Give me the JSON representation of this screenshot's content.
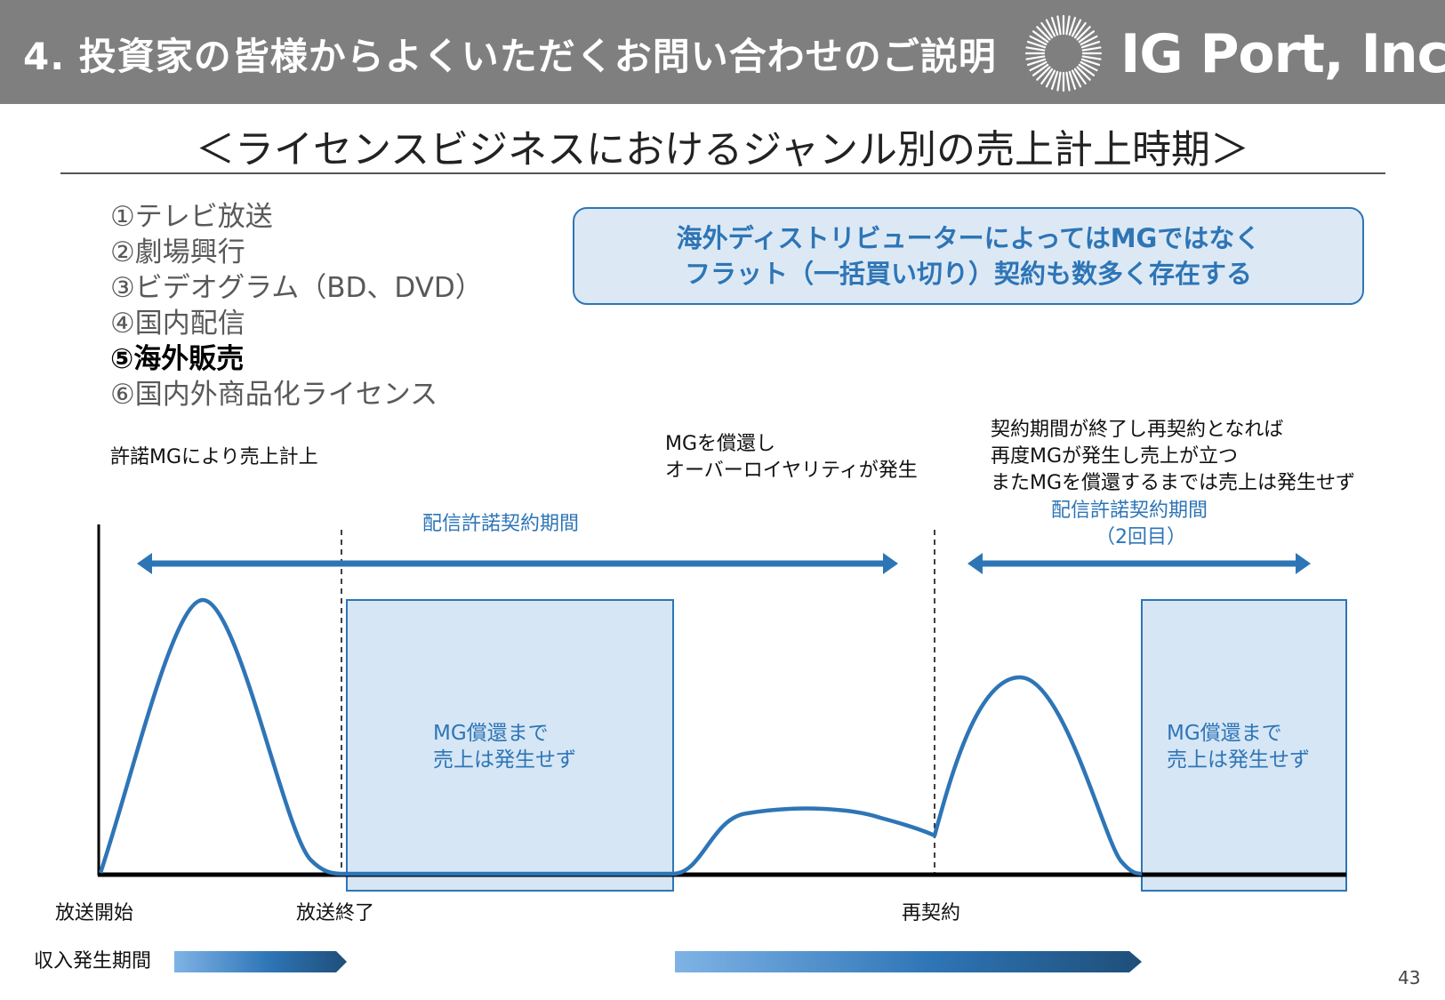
{
  "header": {
    "title": "4. 投資家の皆様からよくいただくお問い合わせのご説明",
    "logo_text": "IG Port, Inc."
  },
  "subtitle": "＜ライセンスビジネスにおけるジャンル別の売上計上時期＞",
  "genres": [
    {
      "label": "①テレビ放送",
      "active": false
    },
    {
      "label": "②劇場興行",
      "active": false
    },
    {
      "label": "③ビデオグラム（BD、DVD）",
      "active": false
    },
    {
      "label": "④国内配信",
      "active": false
    },
    {
      "label": "⑤海外販売",
      "active": true
    },
    {
      "label": "⑥国内外商品化ライセンス",
      "active": false
    }
  ],
  "note": {
    "line1": "海外ディストリビューターによってはMGではなく",
    "line2": "フラット（一括買い切り）契約も数多く存在する"
  },
  "annotations": {
    "mg_revenue": "許諾MGにより売上計上",
    "overroyalty_1": "MGを償還し",
    "overroyalty_2": "オーバーロイヤリティが発生",
    "renewal_1": "契約期間が終了し再契約となれば",
    "renewal_2": "再度MGが発生し売上が立つ",
    "renewal_3": "またMGを償還するまでは売上は発生せず"
  },
  "periods": {
    "first": "配信許諾契約期間",
    "second_1": "配信許諾契約期間",
    "second_2": "（2回目）"
  },
  "boxes": {
    "label1_a": "MG償還まで",
    "label1_b": "売上は発生せず",
    "label2_a": "MG償還まで",
    "label2_b": "売上は発生せず"
  },
  "timeline": {
    "start": "放送開始",
    "end": "放送終了",
    "renewal": "再契約"
  },
  "income_legend": "収入発生期間",
  "page_number": "43",
  "colors": {
    "header_bg": "#7f7f7f",
    "accent": "#2e75b6",
    "box_fill": "#d6e6f5"
  }
}
